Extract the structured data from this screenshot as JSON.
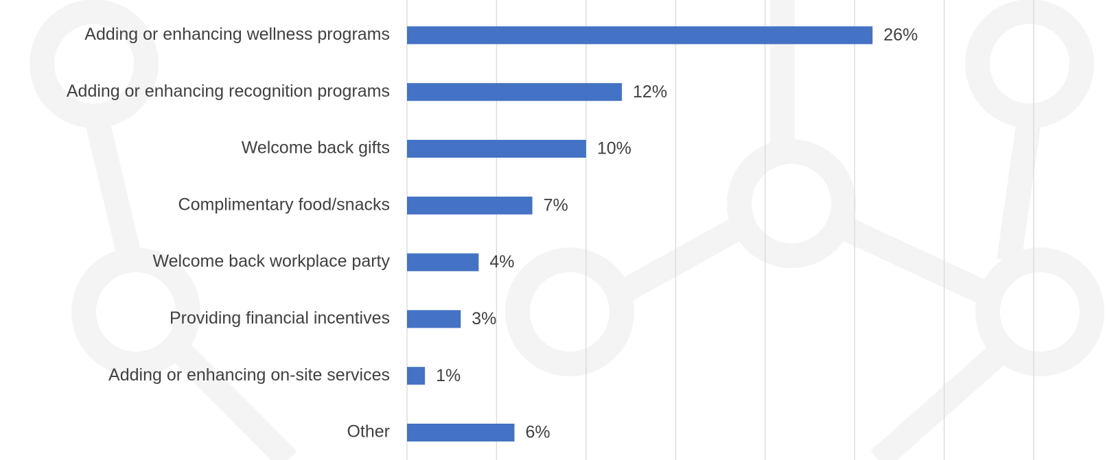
{
  "chart_data": {
    "type": "bar",
    "orientation": "horizontal",
    "categories": [
      "Adding or enhancing wellness programs",
      "Adding or enhancing recognition programs",
      "Welcome back gifts",
      "Complimentary food/snacks",
      "Welcome back workplace party",
      "Providing financial incentives",
      "Adding or enhancing on-site services",
      "Other"
    ],
    "values": [
      26,
      12,
      10,
      7,
      4,
      3,
      1,
      6
    ],
    "value_labels": [
      "26%",
      "12%",
      "10%",
      "7%",
      "4%",
      "3%",
      "1%",
      "6%"
    ],
    "color": "#4472c4",
    "xlim": [
      0,
      35
    ],
    "xticks": [
      0,
      5,
      10,
      15,
      20,
      25,
      30,
      35
    ],
    "grid": true
  }
}
